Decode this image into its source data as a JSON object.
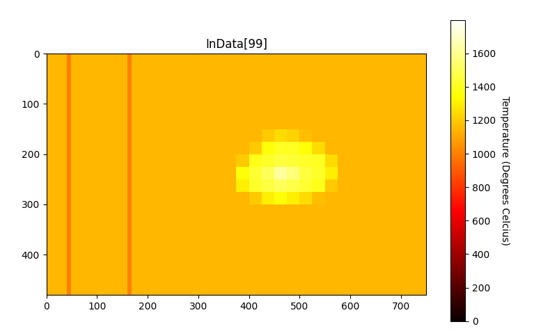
{
  "chart_data": {
    "type": "heatmap",
    "title": "InData[99]",
    "x_edges": [
      0,
      40,
      48,
      160,
      168,
      375,
      400,
      425,
      450,
      475,
      500,
      525,
      550,
      575,
      600,
      750
    ],
    "y_edges": [
      0,
      150,
      175,
      200,
      225,
      250,
      275,
      300,
      480
    ],
    "cells": [
      [
        1150,
        1000,
        1150,
        1000,
        1150,
        1150,
        1150,
        1150,
        1150,
        1150,
        1150,
        1150,
        1150,
        1150,
        1150
      ],
      [
        1150,
        1000,
        1150,
        1000,
        1150,
        1150,
        1150,
        1200,
        1250,
        1220,
        1170,
        1150,
        1150,
        1150,
        1150
      ],
      [
        1150,
        1000,
        1150,
        1000,
        1150,
        1150,
        1200,
        1350,
        1400,
        1400,
        1350,
        1250,
        1150,
        1150,
        1150
      ],
      [
        1150,
        1000,
        1150,
        1000,
        1150,
        1200,
        1380,
        1420,
        1450,
        1440,
        1420,
        1400,
        1250,
        1150,
        1150
      ],
      [
        1150,
        1000,
        1150,
        1000,
        1150,
        1350,
        1430,
        1500,
        1620,
        1560,
        1450,
        1420,
        1300,
        1150,
        1150
      ],
      [
        1150,
        1000,
        1150,
        1000,
        1150,
        1300,
        1420,
        1460,
        1500,
        1470,
        1430,
        1380,
        1200,
        1150,
        1150
      ],
      [
        1150,
        1000,
        1150,
        1000,
        1150,
        1150,
        1200,
        1300,
        1350,
        1300,
        1250,
        1170,
        1150,
        1150,
        1150
      ],
      [
        1150,
        1000,
        1150,
        1000,
        1150,
        1150,
        1150,
        1150,
        1150,
        1150,
        1150,
        1150,
        1150,
        1150,
        1150
      ]
    ],
    "xlim": [
      0,
      750
    ],
    "ylim": [
      480,
      0
    ],
    "xticks": [
      0,
      100,
      200,
      300,
      400,
      500,
      600,
      700
    ],
    "yticks": [
      0,
      100,
      200,
      300,
      400
    ],
    "colorbar": {
      "label": "Temperature (Degrees Celcius)",
      "range": [
        0,
        1800
      ],
      "ticks": [
        0,
        200,
        400,
        600,
        800,
        1000,
        1200,
        1400,
        1600
      ]
    }
  }
}
